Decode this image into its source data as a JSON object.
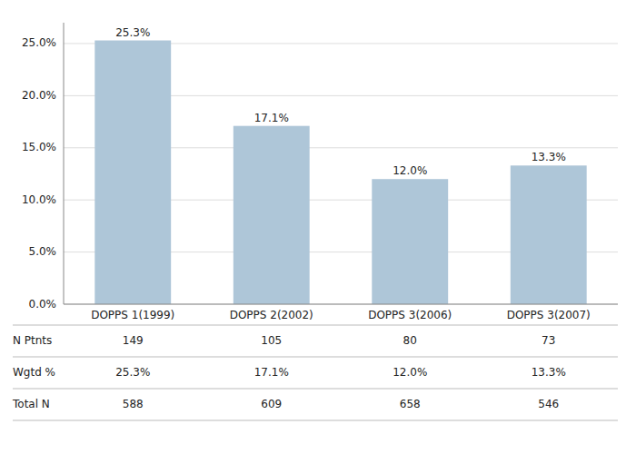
{
  "chart_data": {
    "type": "bar",
    "categories": [
      "DOPPS 1(1999)",
      "DOPPS 2(2002)",
      "DOPPS 3(2006)",
      "DOPPS 3(2007)"
    ],
    "values": [
      25.3,
      17.1,
      12.0,
      13.3
    ],
    "value_labels": [
      "25.3%",
      "17.1%",
      "12.0%",
      "13.3%"
    ],
    "data_labels": true,
    "color": "#aec6d8",
    "ylim": [
      0,
      27
    ],
    "yticks": [
      {
        "value": 0,
        "label": "0.0%"
      },
      {
        "value": 5,
        "label": "5.0%"
      },
      {
        "value": 10,
        "label": "10.0%"
      },
      {
        "value": 15,
        "label": "15.0%"
      },
      {
        "value": 20,
        "label": "20.0%"
      },
      {
        "value": 25,
        "label": "25.0%"
      }
    ],
    "grid": true,
    "table": [
      {
        "name": "N Ptnts",
        "values": [
          149,
          105,
          80,
          73
        ]
      },
      {
        "name": "Wgtd %",
        "values": [
          25.3,
          17.1,
          12.0,
          13.3
        ],
        "value_labels": [
          "25.3%",
          "17.1%",
          "12.0%",
          "13.3%"
        ]
      },
      {
        "name": "Total N",
        "values": [
          588,
          609,
          658,
          546
        ]
      }
    ]
  }
}
